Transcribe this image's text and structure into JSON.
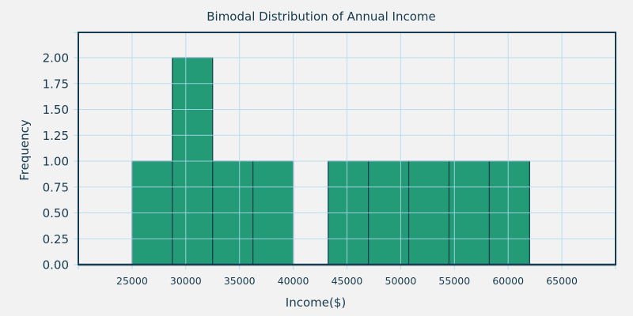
{
  "chart_data": {
    "type": "bar",
    "title": "Bimodal Distribution of Annual Income",
    "xlabel": "Income($)",
    "ylabel": "Frequency",
    "xlim": [
      20000,
      70000
    ],
    "ylim": [
      0,
      2.24
    ],
    "x_ticks": [
      25000,
      30000,
      35000,
      40000,
      45000,
      50000,
      55000,
      60000,
      65000
    ],
    "x_tick_labels": [
      "25000",
      "30000",
      "35000",
      "40000",
      "45000",
      "50000",
      "55000",
      "60000",
      "65000"
    ],
    "y_ticks": [
      0,
      0.25,
      0.5,
      0.75,
      1.0,
      1.25,
      1.5,
      1.75,
      2.0
    ],
    "y_tick_labels": [
      "0.00",
      "0.25",
      "0.50",
      "0.75",
      "1.00",
      "1.25",
      "1.50",
      "1.75",
      "2.00"
    ],
    "grid": true,
    "legend": null,
    "histogram": true,
    "bins": [
      {
        "start": 25000,
        "end": 28750,
        "count": 1
      },
      {
        "start": 28750,
        "end": 32500,
        "count": 2
      },
      {
        "start": 32500,
        "end": 36250,
        "count": 1
      },
      {
        "start": 36250,
        "end": 40000,
        "count": 1
      },
      {
        "start": 40000,
        "end": 43250,
        "count": 0
      },
      {
        "start": 43250,
        "end": 47000,
        "count": 1
      },
      {
        "start": 47000,
        "end": 50750,
        "count": 1
      },
      {
        "start": 50750,
        "end": 54500,
        "count": 1
      },
      {
        "start": 54500,
        "end": 58250,
        "count": 1
      },
      {
        "start": 58250,
        "end": 62000,
        "count": 1
      }
    ],
    "categories": [
      "25000-28750",
      "28750-32500",
      "32500-36250",
      "36250-40000",
      "40000-43250",
      "43250-47000",
      "47000-50750",
      "50750-54500",
      "54500-58250",
      "58250-62000"
    ],
    "values": [
      1,
      2,
      1,
      1,
      0,
      1,
      1,
      1,
      1,
      1
    ],
    "colors": {
      "bar_fill": "#229b76",
      "bar_edge": "#123d4f",
      "grid": "#aedcef",
      "axis": "#163a4f",
      "background": "#f2f2f2"
    }
  }
}
